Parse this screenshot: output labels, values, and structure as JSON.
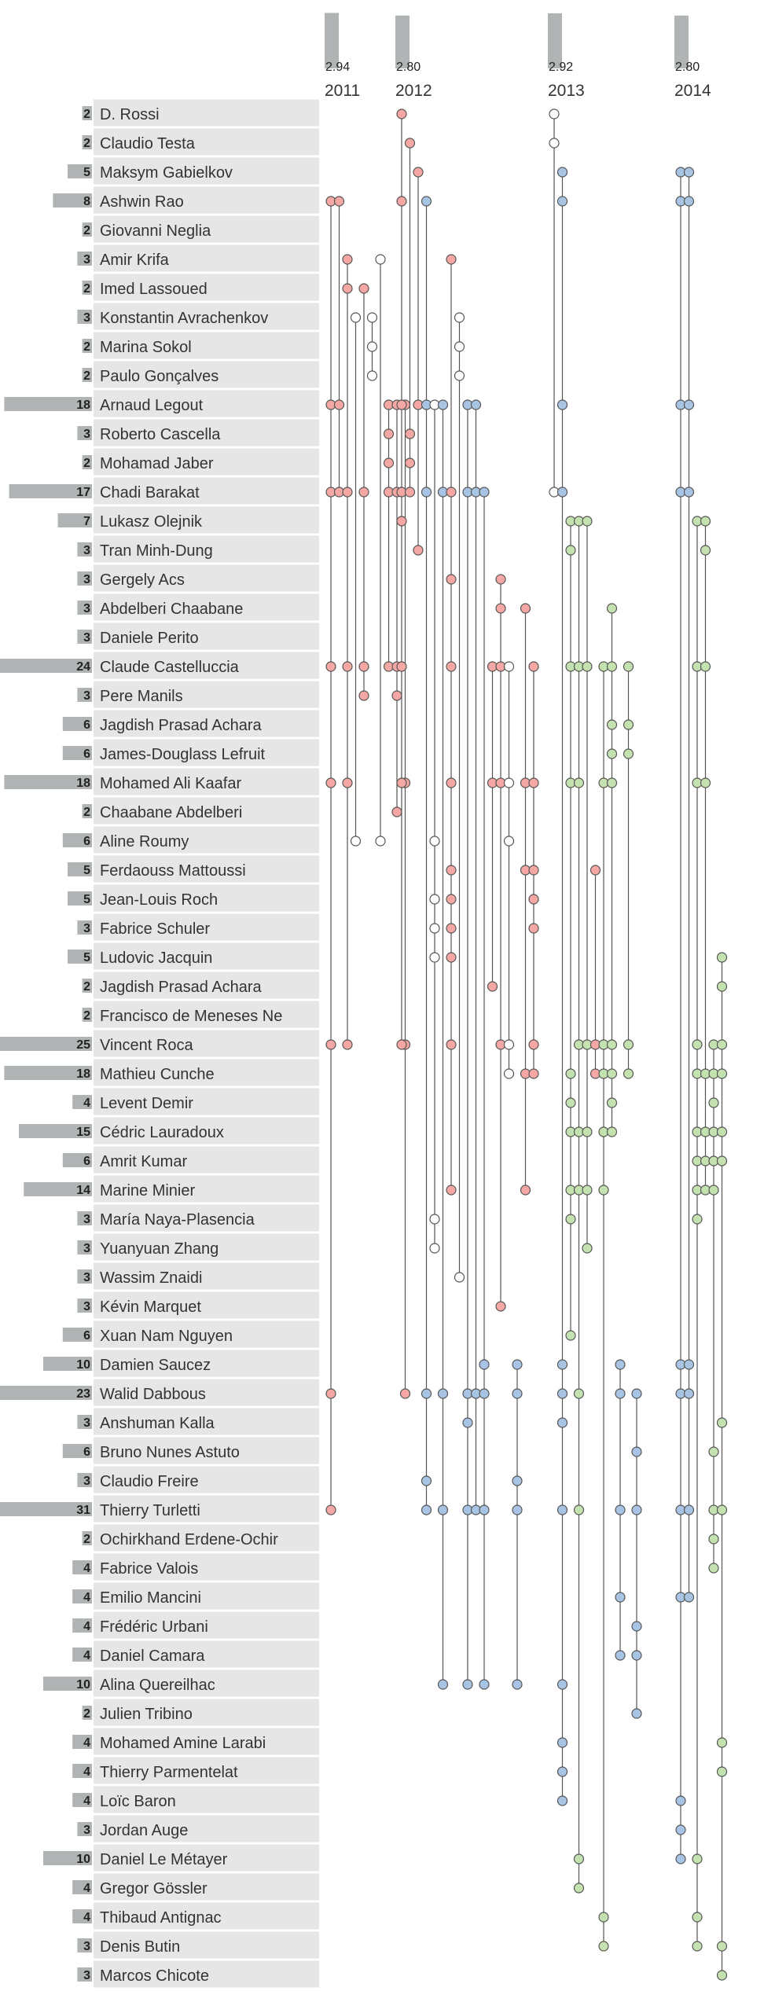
{
  "chart_data": {
    "type": "scatter",
    "title": "",
    "xlabel": "",
    "ylabel": "",
    "years": [
      {
        "label": "2011",
        "value": "2.94"
      },
      {
        "label": "2012",
        "value": "2.80"
      },
      {
        "label": "2013",
        "value": "2.92"
      },
      {
        "label": "2014",
        "value": "2.80"
      }
    ],
    "authors": [
      {
        "name": "D. Rossi",
        "count": 2
      },
      {
        "name": "Claudio Testa",
        "count": 2
      },
      {
        "name": "Maksym Gabielkov",
        "count": 5
      },
      {
        "name": "Ashwin Rao",
        "count": 8
      },
      {
        "name": "Giovanni Neglia",
        "count": 2
      },
      {
        "name": "Amir Krifa",
        "count": 3
      },
      {
        "name": "Imed Lassoued",
        "count": 2
      },
      {
        "name": "Konstantin Avrachenkov",
        "count": 3
      },
      {
        "name": "Marina Sokol",
        "count": 2
      },
      {
        "name": "Paulo Gonçalves",
        "count": 2
      },
      {
        "name": "Arnaud Legout",
        "count": 18
      },
      {
        "name": "Roberto Cascella",
        "count": 3
      },
      {
        "name": "Mohamad Jaber",
        "count": 2
      },
      {
        "name": "Chadi Barakat",
        "count": 17
      },
      {
        "name": "Lukasz Olejnik",
        "count": 7
      },
      {
        "name": "Tran Minh-Dung",
        "count": 3
      },
      {
        "name": "Gergely Acs",
        "count": 3
      },
      {
        "name": "Abdelberi Chaabane",
        "count": 3
      },
      {
        "name": "Daniele Perito",
        "count": 3
      },
      {
        "name": "Claude Castelluccia",
        "count": 24
      },
      {
        "name": "Pere Manils",
        "count": 3
      },
      {
        "name": "Jagdish Prasad Achara",
        "count": 6
      },
      {
        "name": "James-Douglass Lefruit",
        "count": 6
      },
      {
        "name": "Mohamed Ali Kaafar",
        "count": 18
      },
      {
        "name": "Chaabane Abdelberi",
        "count": 2
      },
      {
        "name": "Aline Roumy",
        "count": 6
      },
      {
        "name": "Ferdaouss Mattoussi",
        "count": 5
      },
      {
        "name": "Jean-Louis Roch",
        "count": 5
      },
      {
        "name": "Fabrice Schuler",
        "count": 3
      },
      {
        "name": "Ludovic Jacquin",
        "count": 5
      },
      {
        "name": "Jagdish Prasad Achara",
        "count": 2
      },
      {
        "name": "Francisco de Meneses Ne",
        "count": 2
      },
      {
        "name": "Vincent Roca",
        "count": 25
      },
      {
        "name": "Mathieu Cunche",
        "count": 18
      },
      {
        "name": "Levent Demir",
        "count": 4
      },
      {
        "name": "Cédric Lauradoux",
        "count": 15
      },
      {
        "name": "Amrit Kumar",
        "count": 6
      },
      {
        "name": "Marine Minier",
        "count": 14
      },
      {
        "name": "María Naya-Plasencia",
        "count": 3
      },
      {
        "name": "Yuanyuan Zhang",
        "count": 3
      },
      {
        "name": "Wassim Znaidi",
        "count": 3
      },
      {
        "name": "Kévin Marquet",
        "count": 3
      },
      {
        "name": "Xuan Nam Nguyen",
        "count": 6
      },
      {
        "name": "Damien Saucez",
        "count": 10
      },
      {
        "name": "Walid Dabbous",
        "count": 23
      },
      {
        "name": "Anshuman Kalla",
        "count": 3
      },
      {
        "name": "Bruno Nunes Astuto",
        "count": 6
      },
      {
        "name": "Claudio Freire",
        "count": 3
      },
      {
        "name": "Thierry Turletti",
        "count": 31
      },
      {
        "name": "Ochirkhand Erdene-Ochir",
        "count": 2
      },
      {
        "name": "Fabrice Valois",
        "count": 4
      },
      {
        "name": "Emilio Mancini",
        "count": 4
      },
      {
        "name": "Frédéric Urbani",
        "count": 4
      },
      {
        "name": "Daniel Camara",
        "count": 4
      },
      {
        "name": "Alina Quereilhac",
        "count": 10
      },
      {
        "name": "Julien Tribino",
        "count": 2
      },
      {
        "name": "Mohamed Amine Larabi",
        "count": 4
      },
      {
        "name": "Thierry Parmentelat",
        "count": 4
      },
      {
        "name": "Loïc Baron",
        "count": 4
      },
      {
        "name": "Jordan Auge",
        "count": 3
      },
      {
        "name": "Daniel Le Métayer",
        "count": 10
      },
      {
        "name": "Gregor Gössler",
        "count": 4
      },
      {
        "name": "Thibaud Antignac",
        "count": 4
      },
      {
        "name": "Denis Butin",
        "count": 3
      },
      {
        "name": "Marcos Chicote",
        "count": 3
      }
    ],
    "colors": {
      "red": "#f4a7a3",
      "blue": "#a8c4e4",
      "green": "#c4e2b0",
      "white": "#ffffff",
      "stroke": "#555555",
      "row_bg": "#e6e6e6",
      "bar": "#b0b4b4"
    },
    "papers": [
      {
        "year": 0,
        "color": "red",
        "authors": [
          3,
          10,
          13,
          19,
          23,
          32,
          44,
          48
        ]
      },
      {
        "year": 0,
        "color": "red",
        "authors": [
          3,
          10,
          13
        ]
      },
      {
        "year": 0,
        "color": "red",
        "authors": [
          5,
          6,
          13,
          19,
          23,
          32
        ]
      },
      {
        "year": 0,
        "color": "white",
        "authors": [
          7,
          25
        ]
      },
      {
        "year": 0,
        "color": "red",
        "authors": [
          6,
          13,
          19,
          20
        ]
      },
      {
        "year": 0,
        "color": "white",
        "authors": [
          7,
          8,
          9
        ]
      },
      {
        "year": 0,
        "color": "white",
        "authors": [
          5,
          25
        ]
      },
      {
        "year": 0,
        "color": "red",
        "authors": [
          10,
          11,
          12,
          13,
          19
        ]
      },
      {
        "year": 0,
        "color": "red",
        "authors": [
          10,
          13,
          19,
          20,
          24
        ]
      },
      {
        "year": 0,
        "color": "red",
        "authors": [
          10,
          23,
          32,
          44
        ]
      },
      {
        "year": 1,
        "color": "red",
        "authors": [
          0,
          3,
          10,
          13,
          14,
          19,
          23,
          32
        ]
      },
      {
        "year": 1,
        "color": "red",
        "authors": [
          1,
          11,
          12,
          13
        ]
      },
      {
        "year": 1,
        "color": "red",
        "authors": [
          2,
          10,
          15
        ]
      },
      {
        "year": 1,
        "color": "blue",
        "authors": [
          3,
          10,
          13,
          44,
          47,
          48
        ]
      },
      {
        "year": 1,
        "color": "white",
        "authors": [
          10,
          25,
          27,
          28,
          29,
          38,
          39
        ]
      },
      {
        "year": 1,
        "color": "blue",
        "authors": [
          10,
          13,
          44,
          48,
          54
        ]
      },
      {
        "year": 1,
        "color": "red",
        "authors": [
          5,
          13,
          16,
          19,
          23,
          26,
          27,
          28,
          29,
          32,
          37
        ]
      },
      {
        "year": 1,
        "color": "white",
        "authors": [
          7,
          8,
          9,
          40
        ]
      },
      {
        "year": 1,
        "color": "blue",
        "authors": [
          10,
          13,
          44,
          45,
          48,
          54
        ]
      },
      {
        "year": 1,
        "color": "blue",
        "authors": [
          10,
          13,
          44,
          48
        ]
      },
      {
        "year": 1,
        "color": "blue",
        "authors": [
          13,
          43,
          44,
          48,
          54
        ]
      },
      {
        "year": 1,
        "color": "red",
        "authors": [
          19,
          23,
          30
        ]
      },
      {
        "year": 1,
        "color": "red",
        "authors": [
          16,
          17,
          19,
          23,
          32,
          41
        ]
      },
      {
        "year": 1,
        "color": "white",
        "authors": [
          19,
          23,
          25,
          32,
          33
        ]
      },
      {
        "year": 1,
        "color": "blue",
        "authors": [
          43,
          44,
          47,
          48,
          54
        ]
      },
      {
        "year": 1,
        "color": "red",
        "authors": [
          17,
          23,
          26,
          33,
          37
        ]
      },
      {
        "year": 1,
        "color": "red",
        "authors": [
          19,
          23,
          26,
          27,
          28,
          32,
          33
        ]
      },
      {
        "year": 2,
        "color": "white",
        "authors": [
          0,
          1,
          13
        ]
      },
      {
        "year": 2,
        "color": "blue",
        "authors": [
          2,
          3,
          10,
          13,
          43,
          44,
          45,
          48,
          54,
          56,
          57,
          58
        ]
      },
      {
        "year": 2,
        "color": "green",
        "authors": [
          14,
          15,
          19,
          23,
          33,
          34,
          35,
          37,
          38,
          42
        ]
      },
      {
        "year": 2,
        "color": "green",
        "authors": [
          14,
          19,
          23,
          32,
          35,
          37,
          44,
          48,
          60,
          61
        ]
      },
      {
        "year": 2,
        "color": "green",
        "authors": [
          14,
          19,
          32,
          35,
          37,
          39
        ]
      },
      {
        "year": 2,
        "color": "red",
        "authors": [
          26,
          32,
          33
        ]
      },
      {
        "year": 2,
        "color": "green",
        "authors": [
          19,
          23,
          32,
          33,
          35,
          37,
          62,
          63
        ]
      },
      {
        "year": 2,
        "color": "green",
        "authors": [
          17,
          19,
          21,
          22,
          23,
          32,
          33,
          34,
          35
        ]
      },
      {
        "year": 2,
        "color": "blue",
        "authors": [
          43,
          44,
          48,
          51,
          53
        ]
      },
      {
        "year": 2,
        "color": "green",
        "authors": [
          19,
          21,
          22,
          32,
          33
        ]
      },
      {
        "year": 2,
        "color": "blue",
        "authors": [
          44,
          46,
          48,
          52,
          53,
          55
        ]
      },
      {
        "year": 3,
        "color": "blue",
        "authors": [
          2,
          3,
          10,
          13,
          43,
          44,
          48,
          51,
          58,
          59,
          60
        ]
      },
      {
        "year": 3,
        "color": "blue",
        "authors": [
          2,
          3,
          10,
          13,
          43,
          44,
          48,
          51
        ]
      },
      {
        "year": 3,
        "color": "green",
        "authors": [
          14,
          19,
          23,
          32,
          33,
          35,
          36,
          37,
          38,
          60,
          62,
          63
        ]
      },
      {
        "year": 3,
        "color": "green",
        "authors": [
          14,
          15,
          19,
          23,
          33,
          35,
          36,
          37
        ]
      },
      {
        "year": 3,
        "color": "green",
        "authors": [
          32,
          33,
          34,
          35,
          36,
          37,
          46,
          48,
          49,
          50
        ]
      },
      {
        "year": 3,
        "color": "green",
        "authors": [
          29,
          30,
          32,
          33,
          35,
          36,
          45,
          48,
          56,
          57,
          63,
          64
        ]
      }
    ]
  }
}
